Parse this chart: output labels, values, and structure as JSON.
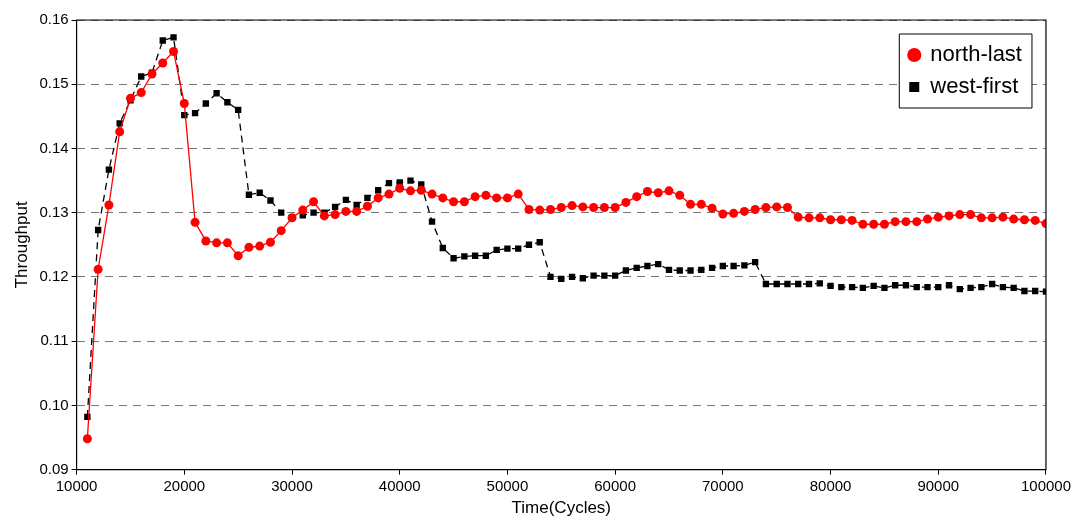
{
  "chart_data": {
    "type": "line",
    "xlabel": "Time(Cycles)",
    "ylabel": "Throughput",
    "x": [
      11000,
      12000,
      13000,
      14000,
      15000,
      16000,
      17000,
      18000,
      19000,
      20000,
      21000,
      22000,
      23000,
      24000,
      25000,
      26000,
      27000,
      28000,
      29000,
      30000,
      31000,
      32000,
      33000,
      34000,
      35000,
      36000,
      37000,
      38000,
      39000,
      40000,
      41000,
      42000,
      43000,
      44000,
      45000,
      46000,
      47000,
      48000,
      49000,
      50000,
      51000,
      52000,
      53000,
      54000,
      55000,
      56000,
      57000,
      58000,
      59000,
      60000,
      61000,
      62000,
      63000,
      64000,
      65000,
      66000,
      67000,
      68000,
      69000,
      70000,
      71000,
      72000,
      73000,
      74000,
      75000,
      76000,
      77000,
      78000,
      79000,
      80000,
      81000,
      82000,
      83000,
      84000,
      85000,
      86000,
      87000,
      88000,
      89000,
      90000,
      91000,
      92000,
      93000,
      94000,
      95000,
      96000,
      97000,
      98000,
      99000,
      100000
    ],
    "series": [
      {
        "name": "north-last",
        "color": "#ff0000",
        "marker": "circle",
        "line_style": "solid",
        "values": [
          0.0948,
          0.1212,
          0.1312,
          0.1426,
          0.1478,
          0.1487,
          0.1516,
          0.1533,
          0.1551,
          0.147,
          0.1285,
          0.1256,
          0.1253,
          0.1253,
          0.1233,
          0.1246,
          0.1248,
          0.1254,
          0.1272,
          0.1292,
          0.1304,
          0.1317,
          0.1295,
          0.1297,
          0.1302,
          0.1302,
          0.131,
          0.1323,
          0.1329,
          0.1338,
          0.1334,
          0.1335,
          0.1329,
          0.1323,
          0.1317,
          0.1317,
          0.1325,
          0.1327,
          0.1323,
          0.1323,
          0.1329,
          0.1305,
          0.1304,
          0.1305,
          0.1308,
          0.1311,
          0.1309,
          0.1308,
          0.1308,
          0.1308,
          0.1316,
          0.1325,
          0.1333,
          0.1331,
          0.1334,
          0.1327,
          0.1313,
          0.1313,
          0.1307,
          0.1298,
          0.1299,
          0.1302,
          0.1305,
          0.1308,
          0.1309,
          0.1308,
          0.1293,
          0.1292,
          0.1292,
          0.1289,
          0.1289,
          0.1288,
          0.1282,
          0.1282,
          0.1282,
          0.1286,
          0.1286,
          0.1286,
          0.129,
          0.1293,
          0.1295,
          0.1297,
          0.1297,
          0.1292,
          0.1292,
          0.1293,
          0.129,
          0.1289,
          0.1288,
          0.1283
        ]
      },
      {
        "name": "west-first",
        "color": "#000000",
        "marker": "square",
        "line_style": "dashed",
        "values": [
          0.0982,
          0.1273,
          0.1367,
          0.1439,
          0.1475,
          0.1512,
          0.1518,
          0.1568,
          0.1573,
          0.1452,
          0.1455,
          0.147,
          0.1486,
          0.1472,
          0.146,
          0.1328,
          0.1331,
          0.1319,
          0.13,
          0.1293,
          0.1296,
          0.13,
          0.13,
          0.1309,
          0.132,
          0.1312,
          0.1323,
          0.1335,
          0.1346,
          0.1347,
          0.135,
          0.1344,
          0.1286,
          0.1245,
          0.1229,
          0.1232,
          0.1233,
          0.1233,
          0.1242,
          0.1244,
          0.1244,
          0.125,
          0.1254,
          0.12,
          0.1197,
          0.12,
          0.1198,
          0.1202,
          0.1202,
          0.1202,
          0.121,
          0.1214,
          0.1217,
          0.122,
          0.1211,
          0.121,
          0.121,
          0.1211,
          0.1214,
          0.1217,
          0.1217,
          0.1218,
          0.1223,
          0.1189,
          0.1189,
          0.1189,
          0.1189,
          0.1189,
          0.119,
          0.1186,
          0.1184,
          0.1184,
          0.1183,
          0.1186,
          0.1183,
          0.1187,
          0.1187,
          0.1184,
          0.1184,
          0.1184,
          0.1187,
          0.1181,
          0.1183,
          0.1184,
          0.1189,
          0.1184,
          0.1183,
          0.1178,
          0.1178,
          0.1177
        ]
      }
    ],
    "xlim": [
      10000,
      100000
    ],
    "xticks": [
      10000,
      20000,
      30000,
      40000,
      50000,
      60000,
      70000,
      80000,
      90000,
      100000
    ],
    "ylim": [
      0.09,
      0.16
    ],
    "yticks": [
      {
        "value": 0.09,
        "label": "0.09"
      },
      {
        "value": 0.1,
        "label": "0.10"
      },
      {
        "value": 0.11,
        "label": "0.11"
      },
      {
        "value": 0.12,
        "label": "0.12"
      },
      {
        "value": 0.13,
        "label": "0.13"
      },
      {
        "value": 0.14,
        "label": "0.14"
      },
      {
        "value": 0.15,
        "label": "0.15"
      },
      {
        "value": 0.16,
        "label": "0.16"
      }
    ],
    "grid": "y",
    "legend": "top right"
  }
}
